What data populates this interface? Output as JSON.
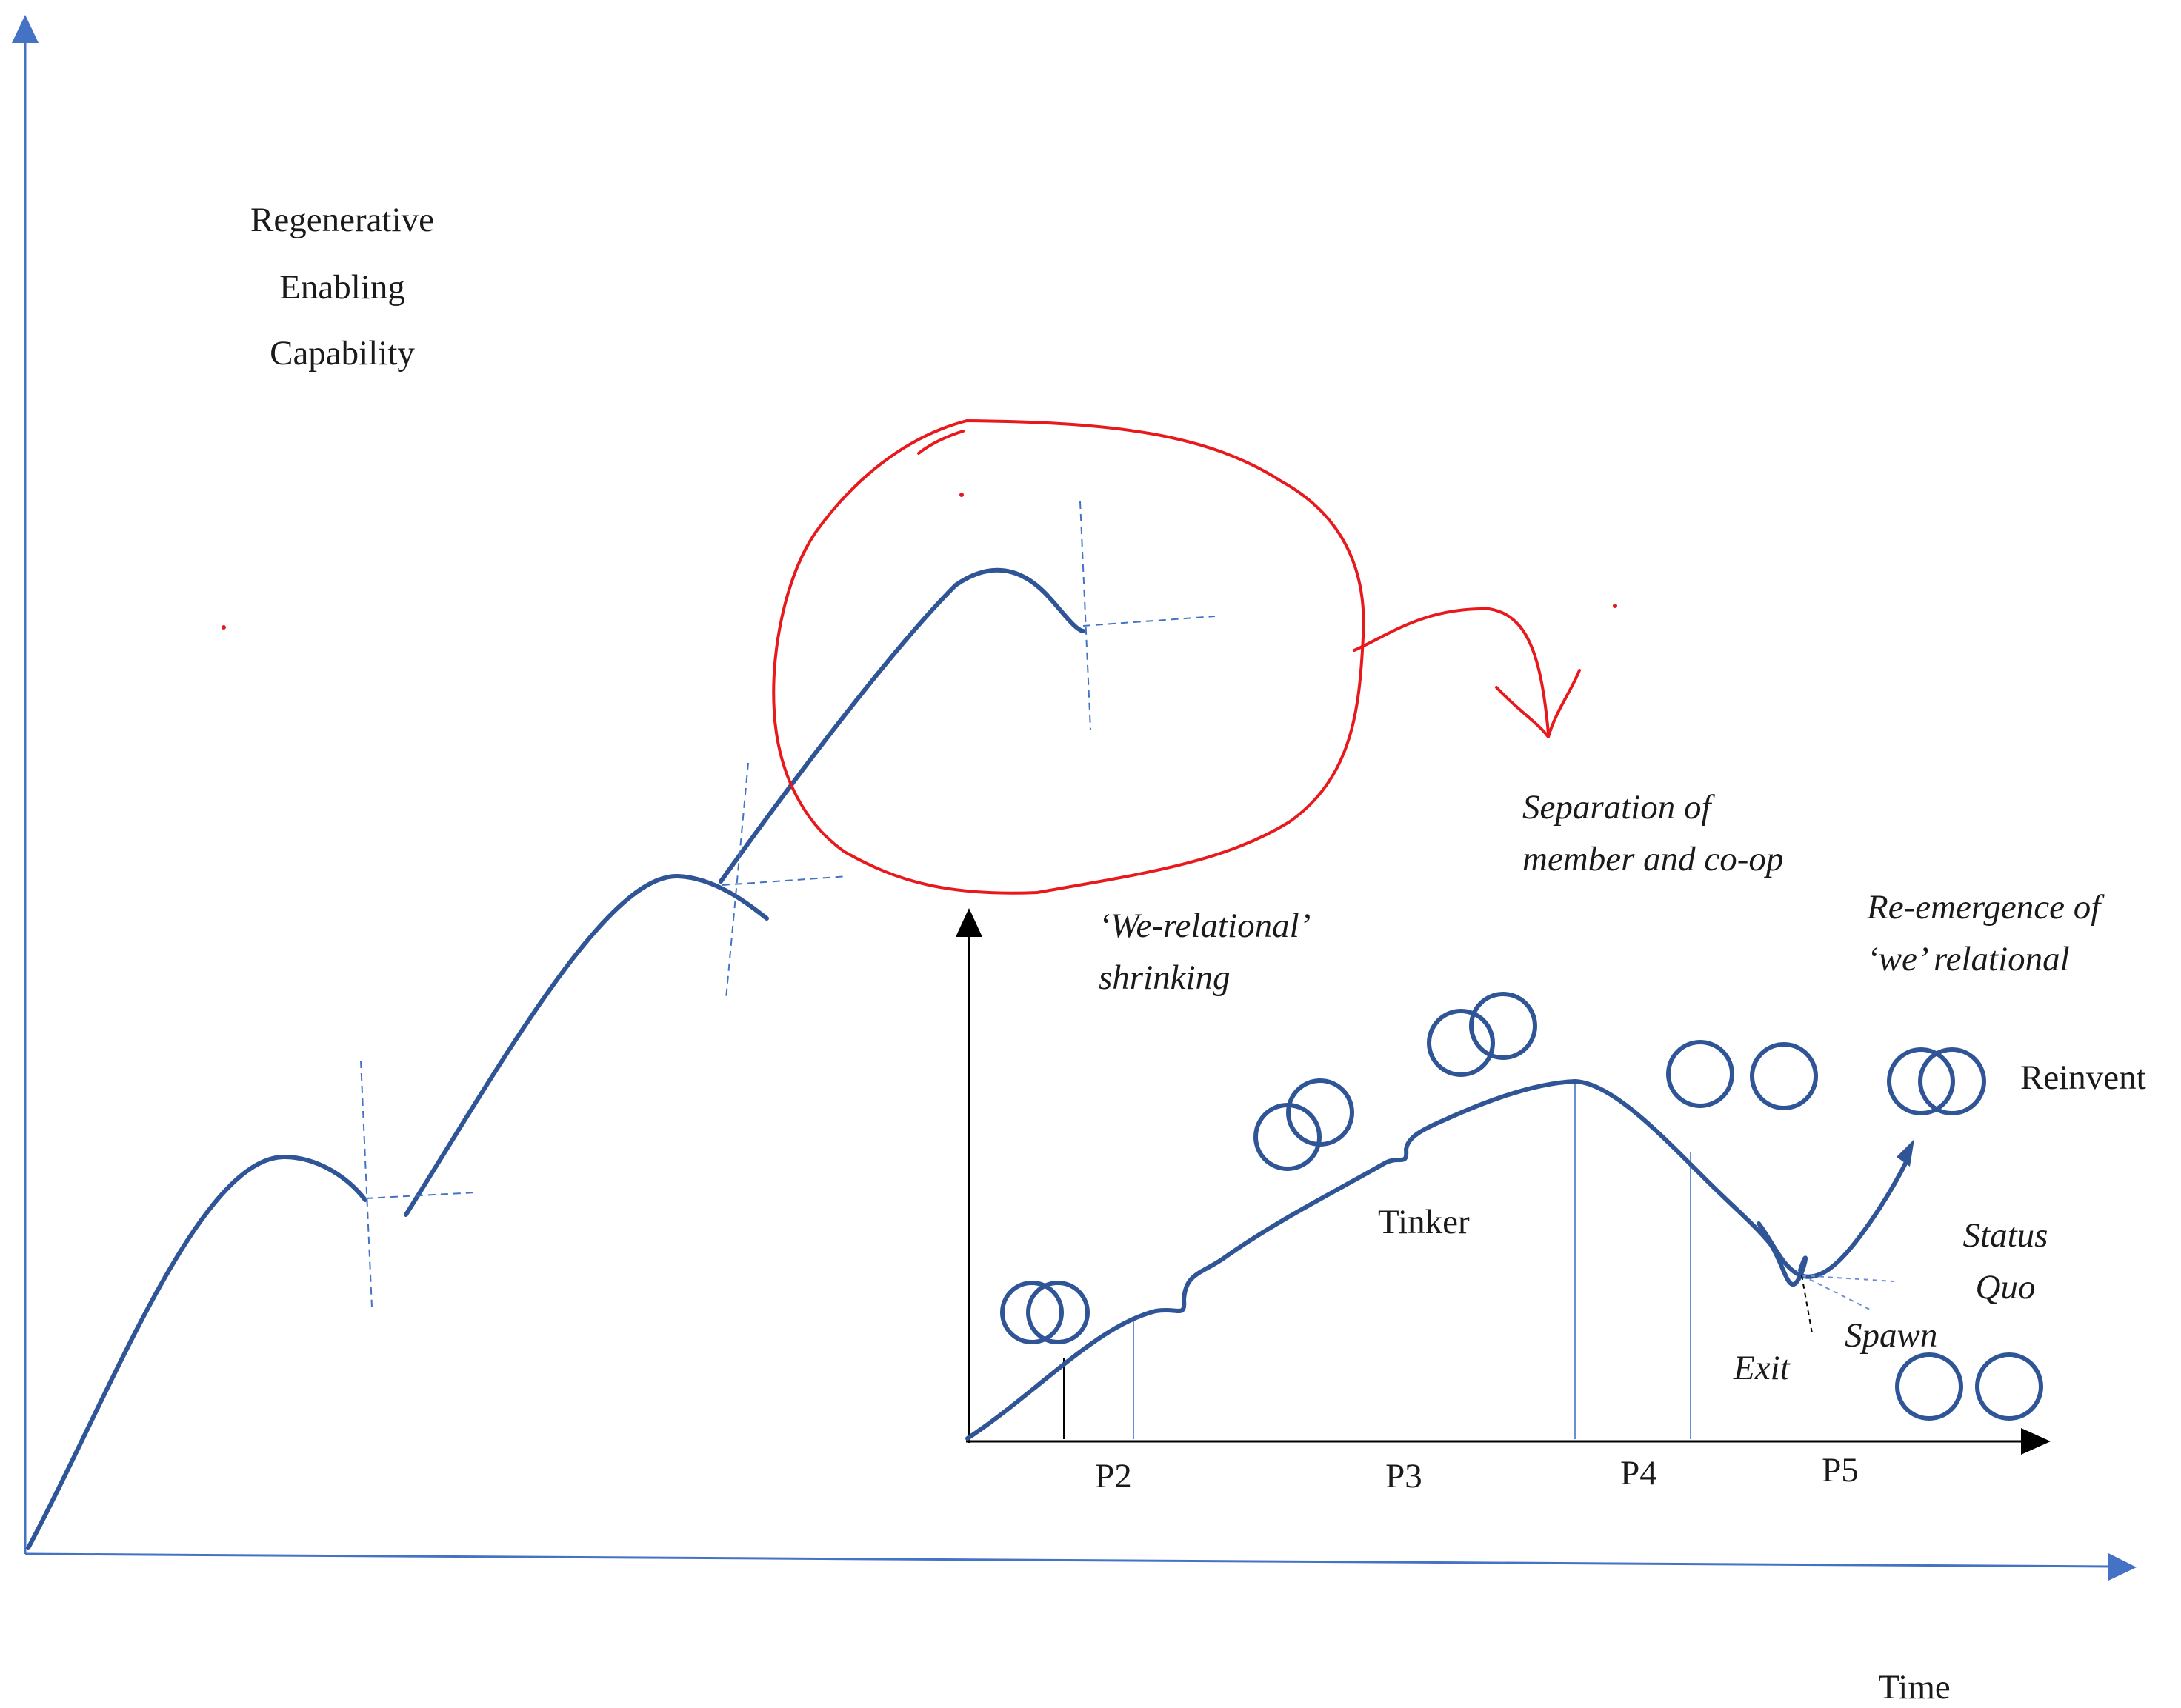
{
  "labels": {
    "y_axis_line1": "Regenerative",
    "y_axis_line2": "Enabling",
    "y_axis_line3": "Capability",
    "x_axis": "Time",
    "separation_line1": "Separation of",
    "separation_line2": "member and co-op",
    "we_shrinking_line1": "‘We-relational’",
    "we_shrinking_line2": "shrinking",
    "reemergence_line1": "Re-emergence of",
    "reemergence_line2": "‘we’ relational",
    "reinvent": "Reinvent",
    "tinker": "Tinker",
    "status_line1": "Status",
    "status_line2": "Quo",
    "spawn": "Spawn",
    "exit": "Exit",
    "p2": "P2",
    "p3": "P3",
    "p4": "P4",
    "p5": "P5"
  },
  "colors": {
    "main_axis": "#4472c4",
    "curve": "#2f5597",
    "guide": "#4472c4",
    "highlight": "#e8191d",
    "inset_axis": "#000000",
    "text": "#1a1a1a"
  }
}
